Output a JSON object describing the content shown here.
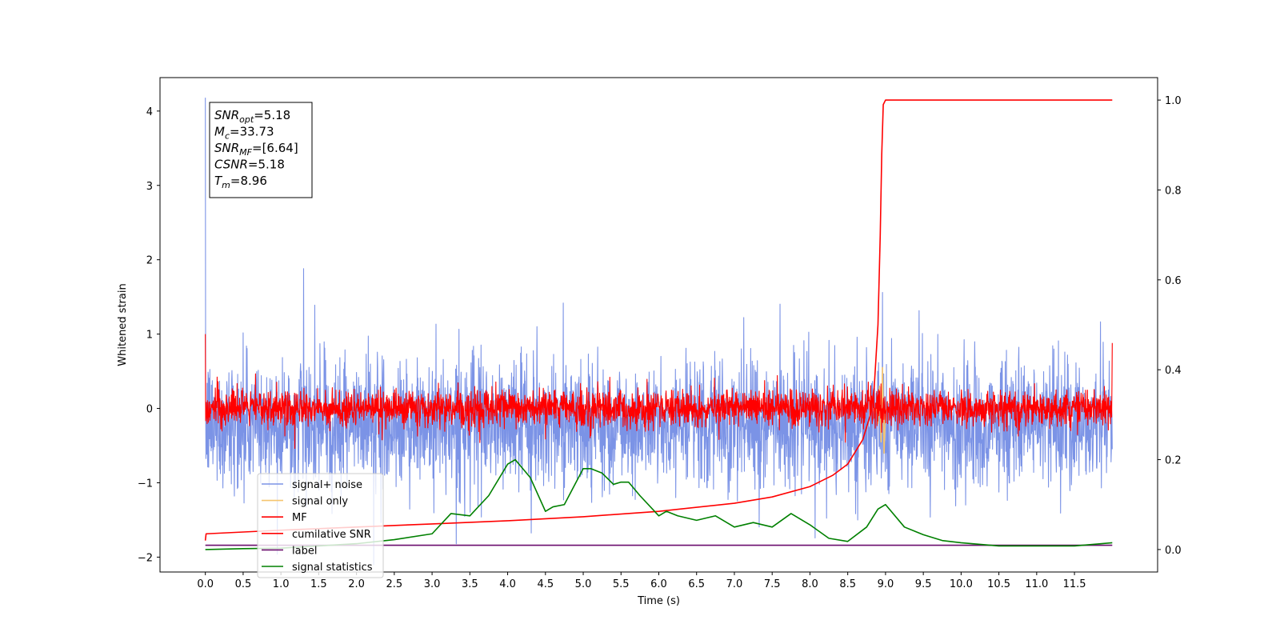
{
  "chart_data": {
    "type": "line",
    "xlabel": "Time (s)",
    "ylabel": "Whitened strain",
    "xlim": [
      -0.6,
      12.6
    ],
    "ylim_left": [
      -2.2,
      4.45
    ],
    "ylim_right": [
      -0.05,
      1.05
    ],
    "x_ticks": [
      "0.0",
      "0.5",
      "1.0",
      "1.5",
      "2.0",
      "2.5",
      "3.0",
      "3.5",
      "4.0",
      "4.5",
      "5.0",
      "5.5",
      "6.0",
      "6.5",
      "7.0",
      "7.5",
      "8.0",
      "8.5",
      "9.0",
      "9.5",
      "10.0",
      "10.5",
      "11.0",
      "11.5"
    ],
    "y_ticks_left": [
      "4",
      "3",
      "2",
      "1",
      "0",
      "−1",
      "−2"
    ],
    "y_ticks_right": [
      "1.0",
      "0.8",
      "0.6",
      "0.4",
      "0.2",
      "0.0"
    ],
    "annotation": {
      "lines": [
        {
          "sym": "SNR",
          "sub": "opt",
          "val": "=5.18"
        },
        {
          "sym": "M",
          "sub": "c",
          "val": "=33.73"
        },
        {
          "sym": "SNR",
          "sub": "MF",
          "val": "=[6.64]"
        },
        {
          "sym": "CSNR",
          "sub": "",
          "val": "=5.18"
        },
        {
          "sym": "T",
          "sub": "m",
          "val": "=8.96"
        }
      ]
    },
    "legend": {
      "placement": "lower-left",
      "entries": [
        {
          "name": "signal+ noise",
          "color": "#7b93e6"
        },
        {
          "name": "signal only",
          "color": "#f5c56f"
        },
        {
          "name": "MF",
          "color": "#ff0000"
        },
        {
          "name": "cumilative SNR",
          "color": "#ff0000"
        },
        {
          "name": "label",
          "color": "#6a0d6e"
        },
        {
          "name": "signal statistics",
          "color": "#008000"
        }
      ]
    },
    "series": [
      {
        "name": "signal+ noise",
        "axis": "left",
        "kind": "noise",
        "color": "#7b93e6",
        "x_range": [
          0,
          12
        ],
        "mean": -0.2,
        "std": 0.42,
        "spikes": [
          [
            0,
            4.18
          ],
          [
            1.3,
            1.88
          ],
          [
            8.96,
            1.56
          ]
        ]
      },
      {
        "name": "signal only",
        "axis": "left",
        "color": "#f5c56f",
        "x": [
          8.88,
          8.9,
          8.92,
          8.94,
          8.96,
          8.98,
          9.0
        ],
        "y": [
          0.0,
          -0.2,
          0.3,
          -0.45,
          0.55,
          -0.6,
          0.0
        ]
      },
      {
        "name": "MF",
        "axis": "left",
        "kind": "noise",
        "color": "#ff0000",
        "x_range": [
          0,
          12
        ],
        "mean": 0.0,
        "std": 0.12,
        "spikes": [
          [
            0,
            1.0
          ],
          [
            12,
            0.88
          ]
        ]
      },
      {
        "name": "cumilative SNR",
        "axis": "right",
        "color": "#ff0000",
        "x": [
          0,
          0.01,
          1,
          2,
          3,
          4,
          5,
          6,
          7,
          7.5,
          8,
          8.3,
          8.5,
          8.7,
          8.8,
          8.85,
          8.9,
          8.93,
          8.95,
          8.97,
          9.0,
          10,
          11,
          12
        ],
        "y": [
          0.02,
          0.035,
          0.043,
          0.05,
          0.057,
          0.064,
          0.073,
          0.085,
          0.103,
          0.117,
          0.14,
          0.165,
          0.19,
          0.245,
          0.3,
          0.36,
          0.5,
          0.7,
          0.88,
          0.99,
          1.0,
          1.0,
          1.0,
          1.0
        ]
      },
      {
        "name": "label",
        "axis": "left",
        "color": "#6a0d6e",
        "x": [
          0,
          12
        ],
        "y": [
          -1.84,
          -1.84
        ]
      },
      {
        "name": "signal statistics",
        "axis": "right",
        "color": "#008000",
        "x": [
          0,
          0.5,
          1,
          1.5,
          2,
          2.5,
          3,
          3.25,
          3.5,
          3.75,
          4,
          4.1,
          4.2,
          4.3,
          4.5,
          4.6,
          4.75,
          5,
          5.1,
          5.25,
          5.4,
          5.5,
          5.6,
          5.75,
          6,
          6.1,
          6.25,
          6.5,
          6.75,
          7,
          7.25,
          7.5,
          7.75,
          8,
          8.25,
          8.5,
          8.75,
          8.9,
          9,
          9.25,
          9.5,
          9.75,
          10,
          10.5,
          11,
          11.5,
          12
        ],
        "y": [
          0.0,
          0.002,
          0.003,
          0.008,
          0.013,
          0.022,
          0.035,
          0.08,
          0.075,
          0.12,
          0.19,
          0.2,
          0.18,
          0.16,
          0.085,
          0.095,
          0.1,
          0.18,
          0.18,
          0.17,
          0.145,
          0.15,
          0.15,
          0.12,
          0.075,
          0.085,
          0.075,
          0.065,
          0.075,
          0.05,
          0.06,
          0.05,
          0.08,
          0.055,
          0.025,
          0.018,
          0.05,
          0.09,
          0.1,
          0.05,
          0.033,
          0.02,
          0.015,
          0.008,
          0.008,
          0.008,
          0.015
        ]
      }
    ]
  }
}
